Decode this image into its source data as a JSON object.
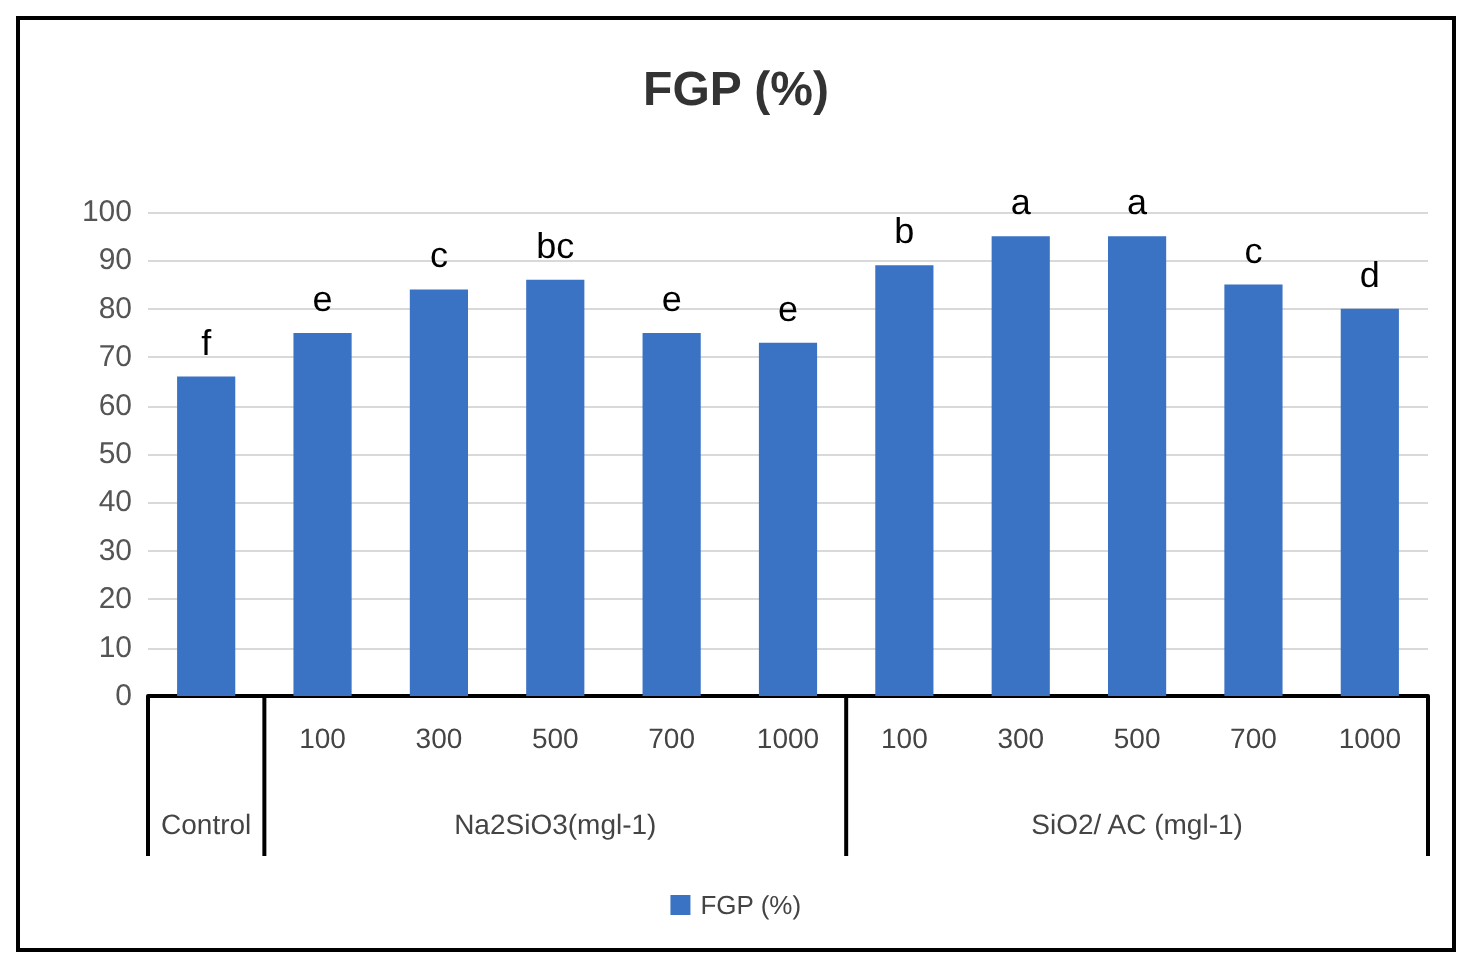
{
  "chart_data": {
    "type": "bar",
    "title": "FGP (%)",
    "categories": [
      null,
      "100",
      "300",
      "500",
      "700",
      "1000",
      "100",
      "300",
      "500",
      "700",
      "1000"
    ],
    "series": [
      {
        "name": "FGP (%)",
        "color": "#3a72c4",
        "values": [
          66,
          75,
          84,
          86,
          75,
          73,
          89,
          95,
          95,
          85,
          80
        ],
        "value_labels": [
          "f",
          "e",
          "c",
          "bc",
          "e",
          "e",
          "b",
          "a",
          "a",
          "c",
          "d"
        ]
      }
    ],
    "annotations": [
      "Control",
      "Na2SiO3(mgl-1)",
      "SiO2/ AC (mgl-1)"
    ],
    "ylim": [
      0,
      100
    ],
    "yticks": [
      0,
      10,
      20,
      30,
      40,
      50,
      60,
      70,
      80,
      90,
      100
    ],
    "grid": "y",
    "legend": "bottom"
  }
}
